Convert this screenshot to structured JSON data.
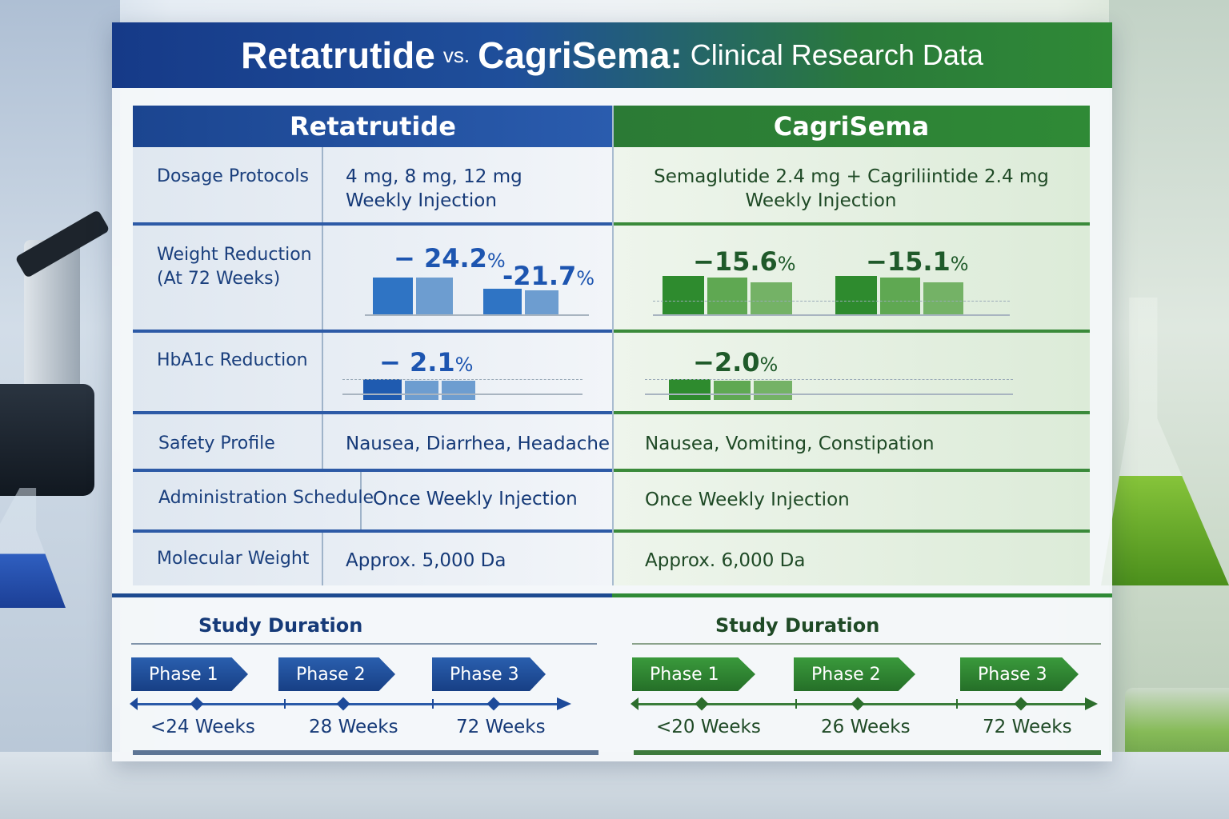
{
  "title": {
    "part1": "Retatrutide",
    "vs": "vs.",
    "part2": "CagriSema:",
    "part3": "Clinical Research Data"
  },
  "columns": {
    "left": "Retatrutide",
    "right": "CagriSema"
  },
  "rows": {
    "dosage": {
      "label": "Dosage Protocols",
      "left_line1": "4 mg, 8 mg, 12 mg",
      "left_line2": "Weekly Injection",
      "right_line1": "Semaglutide 2.4 mg + Cagriliintide 2.4 mg",
      "right_line2": "Weekly Injection"
    },
    "weight": {
      "label_line1": "Weight Reduction",
      "label_line2": "(At 72 Weeks)",
      "left_value1": "− 24.2",
      "left_value2": "-21.7",
      "right_value1": "−15.6",
      "right_value2": "−15.1",
      "unit": "%"
    },
    "hba1c": {
      "label": "HbA1c Reduction",
      "left_value": "− 2.1",
      "right_value": "−2.0",
      "unit": "%"
    },
    "safety": {
      "label": "Safety Profile",
      "left": "Nausea, Diarrhea, Headache",
      "right": "Nausea, Vomiting, Constipation"
    },
    "schedule": {
      "label": "Administration Schedule",
      "left": "Once Weekly Injection",
      "right": "Once Weekly Injection"
    },
    "molecular": {
      "label": "Molecular Weight",
      "left": "Approx. 5,000 Da",
      "right": "Approx. 6,000 Da"
    }
  },
  "study": {
    "left": {
      "title": "Study Duration",
      "phases": [
        "Phase 1",
        "Phase 2",
        "Phase 3"
      ],
      "weeks": [
        "<24 Weeks",
        "28 Weeks",
        "72 Weeks"
      ]
    },
    "right": {
      "title": "Study Duration",
      "phases": [
        "Phase 1",
        "Phase 2",
        "Phase 3"
      ],
      "weeks": [
        "<20 Weeks",
        "26 Weeks",
        "72 Weeks"
      ]
    }
  },
  "colors": {
    "blue": "#1b4590",
    "green": "#2f8a36",
    "text_blue": "#1a3f7d",
    "text_green": "#1f4a26"
  }
}
